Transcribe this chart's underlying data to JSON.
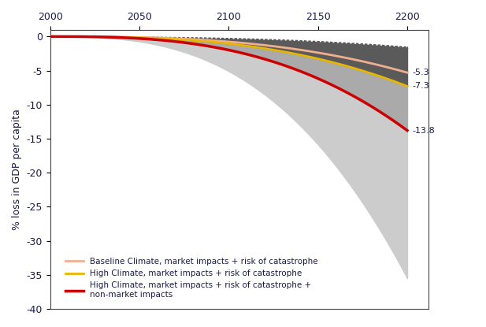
{
  "x_start": 2000,
  "x_end": 2200,
  "y_min": -40,
  "y_max": 1,
  "ylabel": "% loss in GDP per capita",
  "xticks": [
    2000,
    2050,
    2100,
    2150,
    2200
  ],
  "yticks": [
    0,
    -5,
    -10,
    -15,
    -20,
    -25,
    -30,
    -35,
    -40
  ],
  "label_baseline": "Baseline Climate, market impacts + risk of catastrophe",
  "label_high": "High Climate, market impacts + risk of catastrophe",
  "label_high_nonmarket": "High Climate, market impacts + risk of catastrophe +\nnon-market impacts",
  "end_val_peach": "-5.3",
  "end_val_yellow": "-7.3",
  "end_val_red": "-13.8",
  "colors": {
    "dark_gray_fill": "#5a5a5a",
    "medium_gray_fill": "#aaaaaa",
    "light_gray_fill": "#cccccc",
    "white_dotted": "#ffffff",
    "peach_line": "#f0b090",
    "yellow_line": "#e8b800",
    "red_line": "#cc0000",
    "text_dark": "#1a1a4a",
    "axes_color": "#444444"
  },
  "fig_width": 6.17,
  "fig_height": 4.15,
  "dpi": 100
}
